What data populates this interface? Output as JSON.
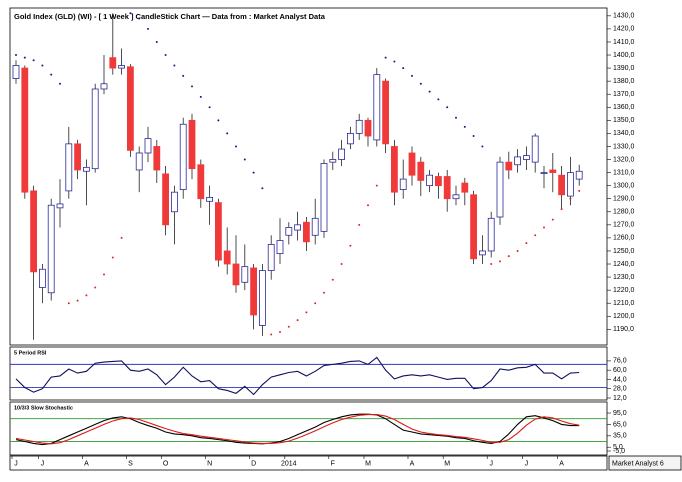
{
  "chart_data": [
    {
      "type": "candlestick",
      "title": "Gold Index (GLD) (WI) -  [ 1 Week ] CandleStick Chart — Data from : Market Analyst Data",
      "categories": [
        "J",
        null,
        null,
        "J",
        null,
        null,
        null,
        null,
        "A",
        null,
        null,
        null,
        null,
        "S",
        null,
        null,
        null,
        "O",
        null,
        null,
        null,
        null,
        "N",
        null,
        null,
        null,
        null,
        "D",
        null,
        null,
        null,
        "2014",
        null,
        null,
        null,
        null,
        "F",
        null,
        null,
        null,
        "M",
        null,
        null,
        null,
        null,
        "A",
        null,
        null,
        null,
        "M",
        null,
        null,
        null,
        null,
        "J",
        null,
        null,
        null,
        "J",
        null,
        null,
        null,
        "A",
        null,
        null
      ],
      "open": [
        1382,
        1390,
        1296,
        1222,
        1218,
        1283,
        1296,
        1332,
        1311,
        1313,
        1374,
        1398,
        1390,
        1391,
        1312,
        1325,
        1330,
        1309,
        1280,
        1297,
        1350,
        1316,
        1288,
        1287,
        1250,
        1240,
        1226,
        1237,
        1193,
        1235,
        1248,
        1262,
        1266,
        1272,
        1262,
        1265,
        1318,
        1320,
        1332,
        1340,
        1350,
        1335,
        1380,
        1330,
        1297,
        1325,
        1318,
        1300,
        1307,
        1307,
        1290,
        1302,
        1293,
        1247,
        1250,
        1276,
        1318,
        1316,
        1320,
        1318,
        1310,
        1312,
        1308,
        1292,
        1305
      ],
      "high": [
        1396,
        1392,
        1300,
        1240,
        1290,
        1305,
        1345,
        1335,
        1320,
        1378,
        1400,
        1432,
        1405,
        1393,
        1330,
        1345,
        1335,
        1315,
        1300,
        1352,
        1355,
        1320,
        1300,
        1290,
        1268,
        1262,
        1255,
        1240,
        1240,
        1262,
        1275,
        1272,
        1280,
        1276,
        1290,
        1320,
        1326,
        1335,
        1345,
        1355,
        1352,
        1390,
        1382,
        1335,
        1320,
        1330,
        1322,
        1312,
        1310,
        1312,
        1300,
        1306,
        1296,
        1262,
        1280,
        1322,
        1326,
        1328,
        1330,
        1340,
        1315,
        1325,
        1315,
        1322,
        1316
      ],
      "low": [
        1378,
        1290,
        1182,
        1210,
        1212,
        1268,
        1290,
        1305,
        1285,
        1310,
        1370,
        1385,
        1385,
        1322,
        1295,
        1318,
        1302,
        1262,
        1255,
        1290,
        1305,
        1283,
        1270,
        1238,
        1232,
        1218,
        1220,
        1190,
        1185,
        1228,
        1240,
        1255,
        1258,
        1250,
        1255,
        1260,
        1312,
        1315,
        1328,
        1335,
        1330,
        1330,
        1325,
        1285,
        1290,
        1300,
        1292,
        1295,
        1290,
        1280,
        1285,
        1285,
        1240,
        1240,
        1245,
        1270,
        1305,
        1310,
        1312,
        1310,
        1298,
        1295,
        1282,
        1285,
        1300
      ],
      "close": [
        1392,
        1295,
        1234,
        1236,
        1285,
        1286,
        1332,
        1312,
        1314,
        1374,
        1378,
        1390,
        1392,
        1327,
        1325,
        1336,
        1312,
        1270,
        1295,
        1347,
        1313,
        1290,
        1291,
        1243,
        1240,
        1224,
        1238,
        1201,
        1235,
        1255,
        1258,
        1268,
        1270,
        1257,
        1275,
        1317,
        1320,
        1328,
        1340,
        1350,
        1338,
        1385,
        1332,
        1295,
        1305,
        1308,
        1304,
        1308,
        1300,
        1290,
        1293,
        1295,
        1244,
        1250,
        1275,
        1318,
        1312,
        1322,
        1323,
        1338,
        1310,
        1310,
        1293,
        1310,
        1311
      ],
      "up_color": "#ffffff",
      "up_edge": "#2a2a9a",
      "down_color": "#f03a3a",
      "wick_color": "#222222",
      "sar": {
        "values": [
          1400,
          1398,
          1396,
          1392,
          1385,
          1378,
          1210,
          1212,
          1216,
          1222,
          1232,
          1245,
          1260,
          1432,
          1428,
          1420,
          1410,
          1400,
          1392,
          1384,
          1376,
          1368,
          1360,
          1350,
          1340,
          1330,
          1320,
          1310,
          1298,
          1186,
          1188,
          1192,
          1197,
          1203,
          1210,
          1218,
          1228,
          1240,
          1254,
          1270,
          1285,
          1300,
          1398,
          1395,
          1390,
          1384,
          1378,
          1372,
          1366,
          1360,
          1352,
          1345,
          1338,
          1330,
          1240,
          1242,
          1246,
          1250,
          1256,
          1262,
          1268,
          1274,
          1282,
          1290,
          1296
        ],
        "above_color": "#1a1a80",
        "below_color": "#e02828"
      },
      "ylim": [
        1178,
        1436
      ],
      "yticks": [
        {
          "value": 1190,
          "label": "1190,0"
        },
        {
          "value": 1200,
          "label": "1200,0"
        },
        {
          "value": 1210,
          "label": "1210,0"
        },
        {
          "value": 1220,
          "label": "1220,0"
        },
        {
          "value": 1230,
          "label": "1230,0"
        },
        {
          "value": 1240,
          "label": "1240,0"
        },
        {
          "value": 1250,
          "label": "1250,0"
        },
        {
          "value": 1260,
          "label": "1260,0"
        },
        {
          "value": 1270,
          "label": "1270,0"
        },
        {
          "value": 1280,
          "label": "1280,0"
        },
        {
          "value": 1290,
          "label": "1290,0"
        },
        {
          "value": 1300,
          "label": "1300,0"
        },
        {
          "value": 1310,
          "label": "1310,0"
        },
        {
          "value": 1320,
          "label": "1320,0"
        },
        {
          "value": 1330,
          "label": "1330,0"
        },
        {
          "value": 1340,
          "label": "1340,0"
        },
        {
          "value": 1350,
          "label": "1350,0"
        },
        {
          "value": 1360,
          "label": "1360,0"
        },
        {
          "value": 1370,
          "label": "1370,0"
        },
        {
          "value": 1380,
          "label": "1380,0"
        },
        {
          "value": 1390,
          "label": "1390,0"
        },
        {
          "value": 1400,
          "label": "1400,0"
        },
        {
          "value": 1410,
          "label": "1410,0"
        },
        {
          "value": 1420,
          "label": "1420,0"
        },
        {
          "value": 1430,
          "label": "1430,0"
        }
      ]
    },
    {
      "type": "line",
      "title": "5 Period RSI",
      "series": [
        {
          "color": "#101060",
          "values": [
            45,
            30,
            22,
            28,
            48,
            50,
            62,
            55,
            58,
            72,
            74,
            75,
            76,
            60,
            58,
            62,
            52,
            35,
            48,
            65,
            50,
            40,
            42,
            28,
            25,
            20,
            32,
            18,
            35,
            48,
            52,
            56,
            58,
            50,
            58,
            68,
            70,
            72,
            75,
            76,
            70,
            82,
            60,
            45,
            50,
            52,
            50,
            52,
            48,
            44,
            46,
            46,
            28,
            30,
            42,
            62,
            60,
            64,
            65,
            70,
            55,
            55,
            45,
            55,
            56
          ]
        }
      ],
      "levels": [
        70,
        30
      ],
      "level_color": "#3434b8",
      "ylim": [
        8.5,
        100
      ],
      "yticks": [
        {
          "value": 76,
          "label": "76,0"
        },
        {
          "value": 60,
          "label": "60,0"
        },
        {
          "value": 44,
          "label": "44,0"
        },
        {
          "value": 28,
          "label": "28,0"
        },
        {
          "value": 12,
          "label": "12,0"
        }
      ]
    },
    {
      "type": "line",
      "title": "10/3/3 Slow Stochastic",
      "series": [
        {
          "color": "#000000",
          "values": [
            25,
            20,
            15,
            12,
            15,
            25,
            35,
            45,
            55,
            65,
            75,
            82,
            85,
            80,
            70,
            62,
            55,
            45,
            40,
            38,
            35,
            30,
            28,
            25,
            22,
            18,
            16,
            15,
            14,
            16,
            20,
            28,
            38,
            48,
            58,
            70,
            78,
            85,
            90,
            92,
            92,
            90,
            80,
            65,
            50,
            45,
            40,
            38,
            36,
            34,
            30,
            28,
            22,
            18,
            15,
            20,
            40,
            65,
            85,
            88,
            82,
            75,
            65,
            62,
            62
          ]
        },
        {
          "color": "#e01818",
          "values": [
            28,
            24,
            20,
            16,
            14,
            17,
            25,
            35,
            45,
            55,
            65,
            74,
            80,
            82,
            78,
            70,
            62,
            54,
            47,
            41,
            38,
            34,
            31,
            28,
            25,
            22,
            19,
            16,
            15,
            15,
            17,
            21,
            29,
            38,
            48,
            59,
            69,
            78,
            84,
            89,
            91,
            91,
            87,
            78,
            65,
            53,
            45,
            41,
            38,
            36,
            33,
            31,
            27,
            23,
            18,
            18,
            25,
            42,
            63,
            79,
            85,
            82,
            74,
            67,
            63
          ]
        }
      ],
      "levels": [
        80,
        20
      ],
      "level_color": "#2a9a2a",
      "ylim": [
        -15.5,
        124
      ],
      "yticks": [
        {
          "value": 95,
          "label": "95,0"
        },
        {
          "value": 65,
          "label": "65,0"
        },
        {
          "value": 35,
          "label": "35,0"
        },
        {
          "value": 5,
          "label": "5,0"
        },
        {
          "value": -5,
          "label": "-5,0"
        }
      ]
    }
  ],
  "footer": "Market Analyst 6"
}
